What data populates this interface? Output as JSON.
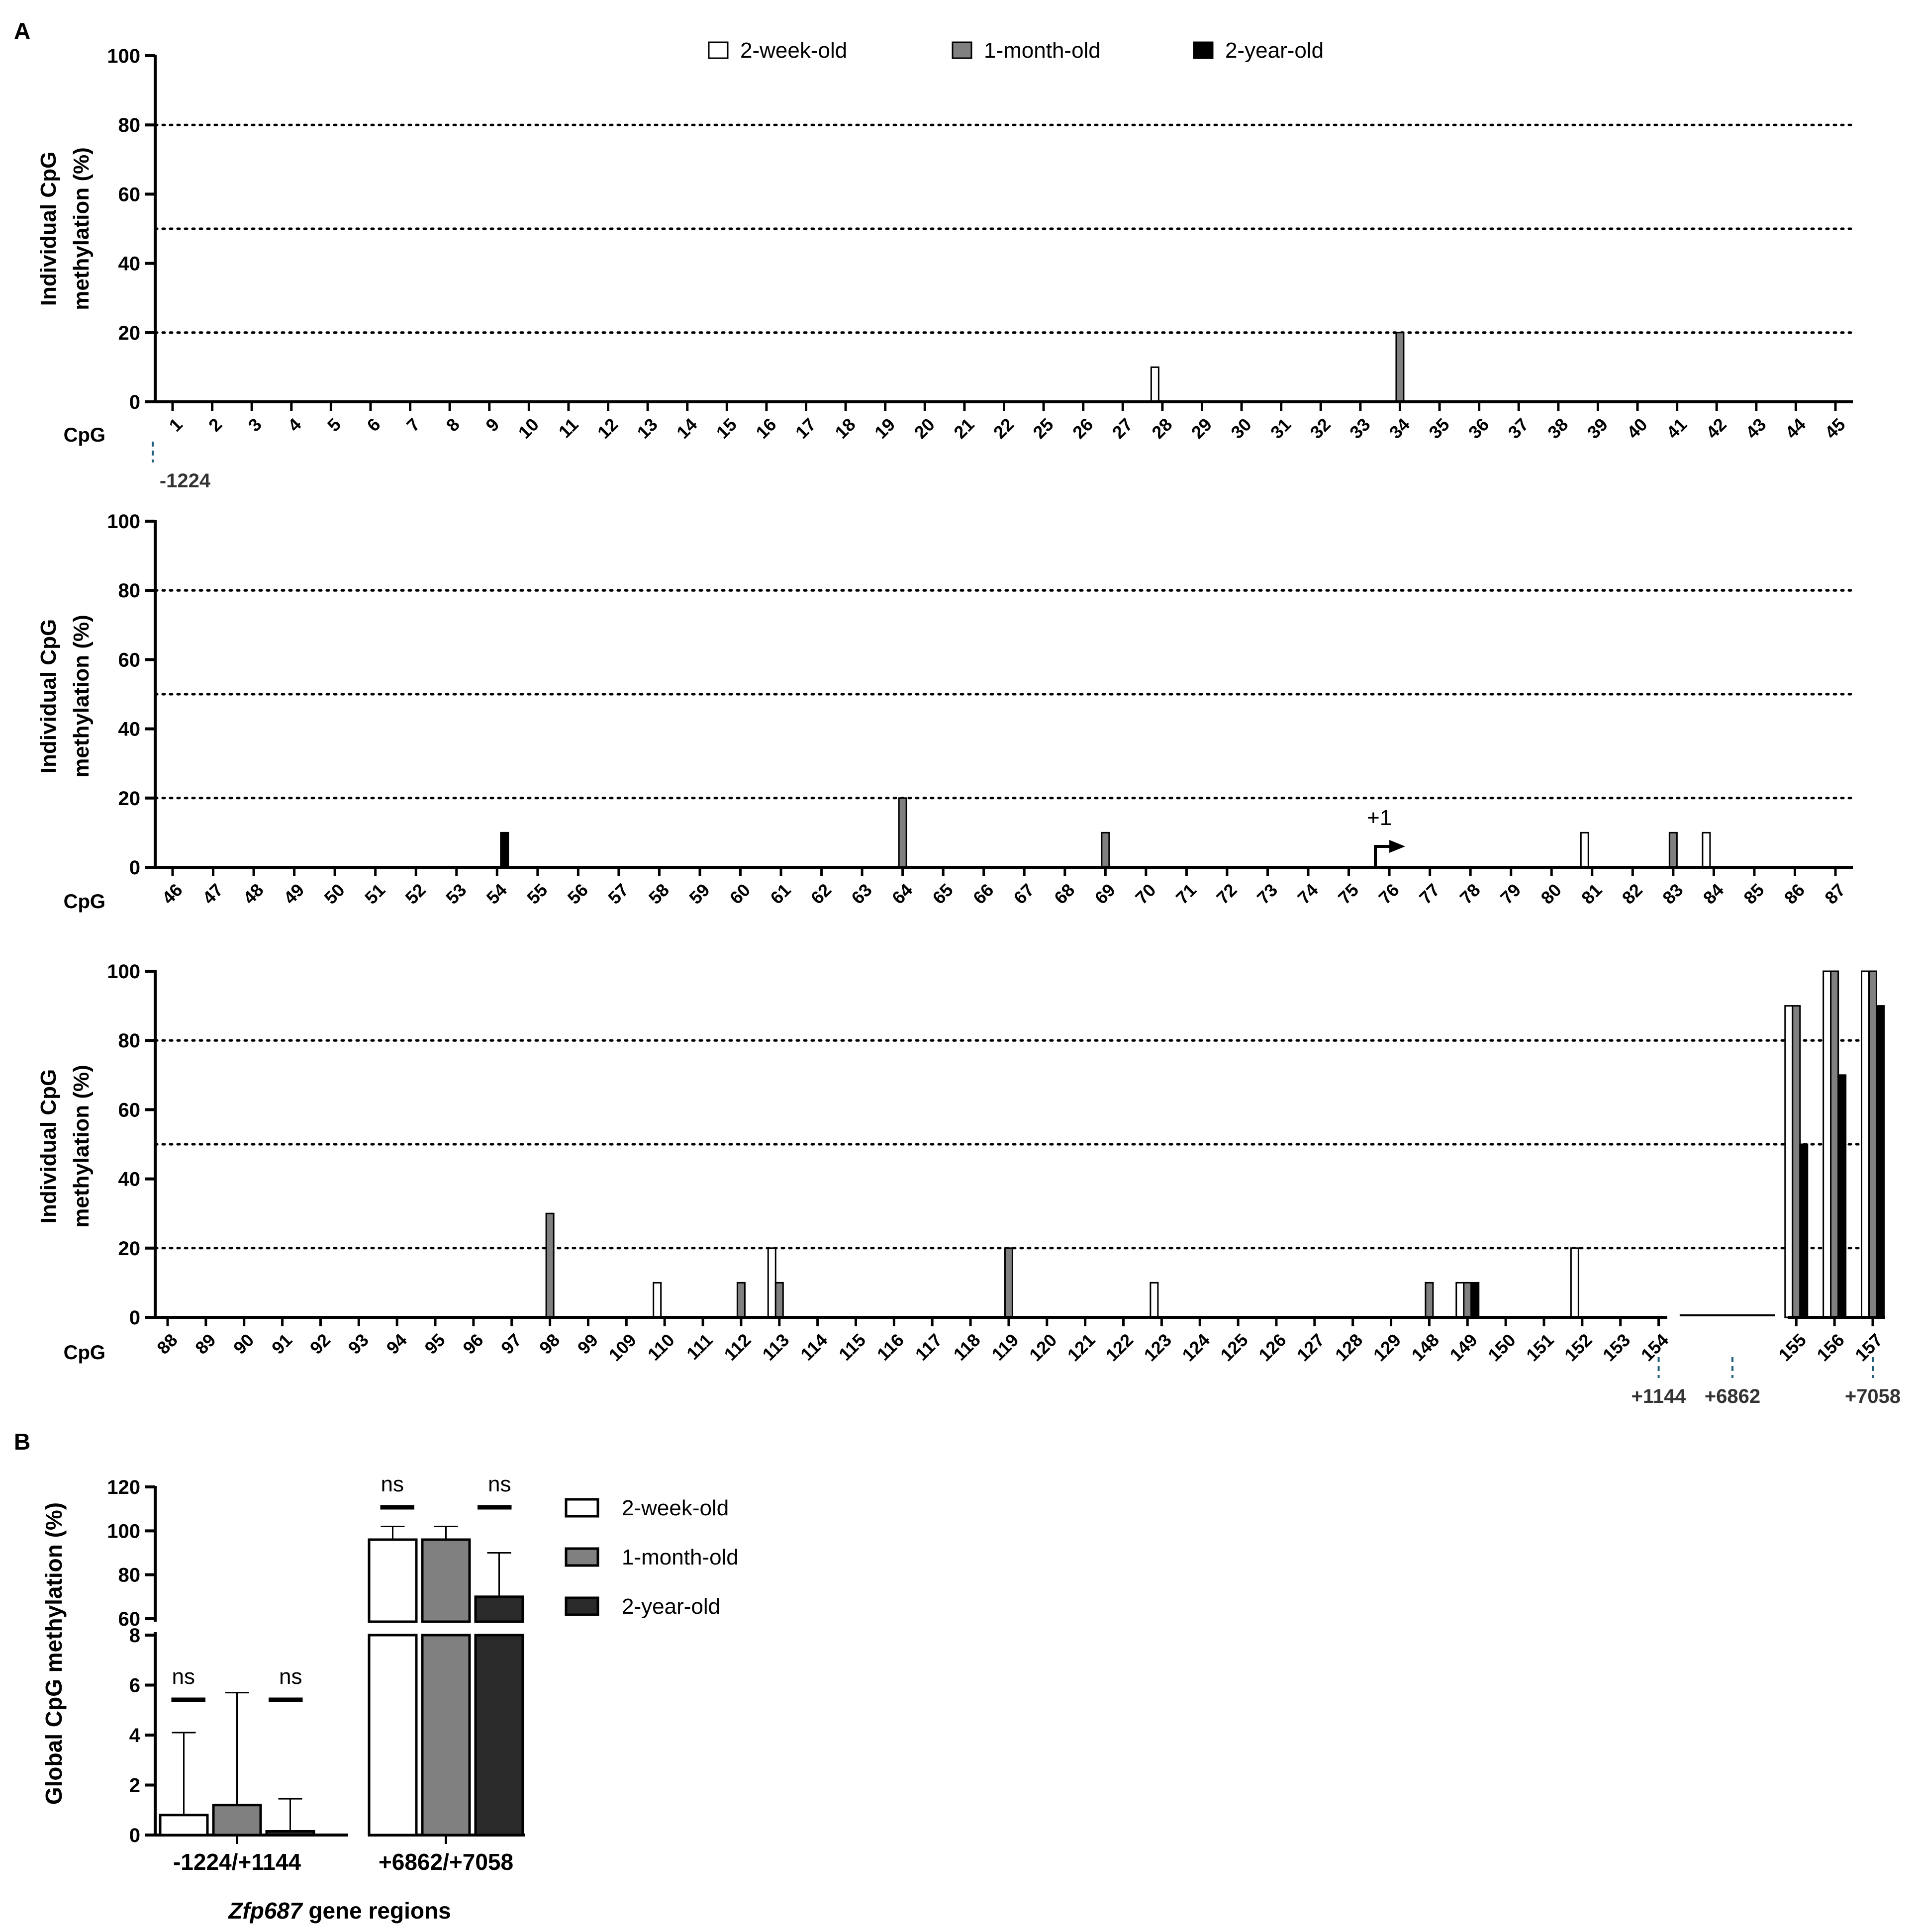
{
  "panel_labels": {
    "a": "A",
    "b": "B"
  },
  "colors": {
    "two_week": "#ffffff",
    "one_month": "#808080",
    "two_year": "#000000",
    "two_year_b": "#2a2a2a",
    "edge": "#000000",
    "guide": "#1f5f7a"
  },
  "chart_data": [
    {
      "type": "bar",
      "panel": "A-top",
      "ylabel_line1": "Individual CpG",
      "ylabel_line2": "methylation (%)",
      "x_title": "CpG",
      "ylim": [
        0,
        100
      ],
      "yticks": [
        "0",
        "20",
        "40",
        "60",
        "80",
        "100"
      ],
      "ref_lines": [
        20,
        50,
        80
      ],
      "categories": [
        "1",
        "2",
        "3",
        "4",
        "5",
        "6",
        "7",
        "8",
        "9",
        "10",
        "11",
        "12",
        "13",
        "14",
        "15",
        "16",
        "17",
        "18",
        "19",
        "20",
        "21",
        "22",
        "25",
        "26",
        "27",
        "28",
        "29",
        "30",
        "31",
        "32",
        "33",
        "34",
        "35",
        "36",
        "37",
        "38",
        "39",
        "40",
        "41",
        "42",
        "43",
        "44",
        "45"
      ],
      "series": [
        {
          "name": "2-week-old",
          "values": [
            0,
            0,
            0,
            0,
            0,
            0,
            0,
            0,
            0,
            0,
            0,
            0,
            0,
            0,
            0,
            0,
            0,
            0,
            0,
            0,
            0,
            0,
            0,
            0,
            0,
            10,
            0,
            0,
            0,
            0,
            0,
            0,
            0,
            0,
            0,
            0,
            0,
            0,
            0,
            0,
            0,
            0,
            0
          ]
        },
        {
          "name": "1-month-old",
          "values": [
            0,
            0,
            0,
            0,
            0,
            0,
            0,
            0,
            0,
            0,
            0,
            0,
            0,
            0,
            0,
            0,
            0,
            0,
            0,
            0,
            0,
            0,
            0,
            0,
            0,
            0,
            0,
            0,
            0,
            0,
            0,
            20,
            0,
            0,
            0,
            0,
            0,
            0,
            0,
            0,
            0,
            0,
            0
          ]
        },
        {
          "name": "2-year-old",
          "values": [
            0,
            0,
            0,
            0,
            0,
            0,
            0,
            0,
            0,
            0,
            0,
            0,
            0,
            0,
            0,
            0,
            0,
            0,
            0,
            0,
            0,
            0,
            0,
            0,
            0,
            0,
            0,
            0,
            0,
            0,
            0,
            0,
            0,
            0,
            0,
            0,
            0,
            0,
            0,
            0,
            0,
            0,
            0
          ]
        }
      ],
      "position_markers": [
        {
          "label": "-1224",
          "at": "1"
        }
      ]
    },
    {
      "type": "bar",
      "panel": "A-middle",
      "ylabel_line1": "Individual CpG",
      "ylabel_line2": "methylation (%)",
      "x_title": "CpG",
      "ylim": [
        0,
        100
      ],
      "yticks": [
        "0",
        "20",
        "40",
        "60",
        "80",
        "100"
      ],
      "ref_lines": [
        20,
        50,
        80
      ],
      "categories": [
        "46",
        "47",
        "48",
        "49",
        "50",
        "51",
        "52",
        "53",
        "54",
        "55",
        "56",
        "57",
        "58",
        "59",
        "60",
        "61",
        "62",
        "63",
        "64",
        "65",
        "66",
        "67",
        "68",
        "69",
        "70",
        "71",
        "72",
        "73",
        "74",
        "75",
        "76",
        "77",
        "78",
        "79",
        "80",
        "81",
        "82",
        "83",
        "84",
        "85",
        "86",
        "87"
      ],
      "series": [
        {
          "name": "2-week-old",
          "values": [
            0,
            0,
            0,
            0,
            0,
            0,
            0,
            0,
            0,
            0,
            0,
            0,
            0,
            0,
            0,
            0,
            0,
            0,
            0,
            0,
            0,
            0,
            0,
            0,
            0,
            0,
            0,
            0,
            0,
            0,
            0,
            0,
            0,
            0,
            0,
            10,
            0,
            0,
            10,
            0,
            0,
            0
          ]
        },
        {
          "name": "1-month-old",
          "values": [
            0,
            0,
            0,
            0,
            0,
            0,
            0,
            0,
            0,
            0,
            0,
            0,
            0,
            0,
            0,
            0,
            0,
            0,
            20,
            0,
            0,
            0,
            0,
            10,
            0,
            0,
            0,
            0,
            0,
            0,
            0,
            0,
            0,
            0,
            0,
            0,
            0,
            10,
            0,
            0,
            0,
            0
          ]
        },
        {
          "name": "2-year-old",
          "values": [
            0,
            0,
            0,
            0,
            0,
            0,
            0,
            0,
            10,
            0,
            0,
            0,
            0,
            0,
            0,
            0,
            0,
            0,
            0,
            0,
            0,
            0,
            0,
            0,
            0,
            0,
            0,
            0,
            0,
            0,
            0,
            0,
            0,
            0,
            0,
            0,
            0,
            0,
            0,
            0,
            0,
            0
          ]
        }
      ],
      "tss_label": "+1",
      "tss_at": "76"
    },
    {
      "type": "bar",
      "panel": "A-bottom",
      "ylabel_line1": "Individual CpG",
      "ylabel_line2": "methylation (%)",
      "x_title": "CpG",
      "ylim": [
        0,
        100
      ],
      "yticks": [
        "0",
        "20",
        "40",
        "60",
        "80",
        "100"
      ],
      "ref_lines": [
        20,
        50,
        80
      ],
      "categories": [
        "88",
        "89",
        "90",
        "91",
        "92",
        "93",
        "94",
        "95",
        "96",
        "97",
        "98",
        "99",
        "109",
        "110",
        "111",
        "112",
        "113",
        "114",
        "115",
        "116",
        "117",
        "118",
        "119",
        "120",
        "121",
        "122",
        "123",
        "124",
        "125",
        "126",
        "127",
        "128",
        "129",
        "148",
        "149",
        "150",
        "151",
        "152",
        "153",
        "154",
        "155",
        "156",
        "157"
      ],
      "series": [
        {
          "name": "2-week-old",
          "values": [
            0,
            0,
            0,
            0,
            0,
            0,
            0,
            0,
            0,
            0,
            0,
            0,
            0,
            10,
            0,
            0,
            20,
            0,
            0,
            0,
            0,
            0,
            0,
            0,
            0,
            0,
            10,
            0,
            0,
            0,
            0,
            0,
            0,
            0,
            10,
            0,
            0,
            20,
            0,
            0,
            90,
            100,
            100
          ]
        },
        {
          "name": "1-month-old",
          "values": [
            0,
            0,
            0,
            0,
            0,
            0,
            0,
            0,
            0,
            0,
            30,
            0,
            0,
            0,
            0,
            10,
            10,
            0,
            0,
            0,
            0,
            0,
            20,
            0,
            0,
            0,
            0,
            0,
            0,
            0,
            0,
            0,
            0,
            10,
            10,
            0,
            0,
            0,
            0,
            0,
            90,
            100,
            100
          ]
        },
        {
          "name": "2-year-old",
          "values": [
            0,
            0,
            0,
            0,
            0,
            0,
            0,
            0,
            0,
            0,
            0,
            0,
            0,
            0,
            0,
            0,
            0,
            0,
            0,
            0,
            0,
            0,
            0,
            0,
            0,
            0,
            0,
            0,
            0,
            0,
            0,
            0,
            0,
            0,
            10,
            0,
            0,
            0,
            0,
            0,
            50,
            70,
            90
          ]
        }
      ],
      "position_markers": [
        {
          "label": "+1144",
          "at": "154"
        },
        {
          "label": "+6862",
          "at": "gap"
        },
        {
          "label": "+7058",
          "at": "157"
        }
      ]
    },
    {
      "type": "bar",
      "panel": "B",
      "ylabel": "Global CpG methylation (%)",
      "xlabel_italic": "Zfp687",
      "xlabel_rest": " gene regions",
      "categories": [
        "-1224/+1144",
        "+6862/+7058"
      ],
      "upper_segment": {
        "ylim": [
          60,
          120
        ],
        "yticks": [
          "60",
          "80",
          "100",
          "120"
        ]
      },
      "lower_segment": {
        "ylim": [
          0,
          8
        ],
        "yticks": [
          "0",
          "2",
          "4",
          "6",
          "8"
        ]
      },
      "series": [
        {
          "name": "2-week-old",
          "values": [
            0.8,
            96
          ],
          "error": [
            3.3,
            6
          ]
        },
        {
          "name": "1-month-old",
          "values": [
            1.2,
            96
          ],
          "error": [
            4.5,
            6
          ]
        },
        {
          "name": "2-year-old",
          "values": [
            0.15,
            70
          ],
          "error": [
            1.3,
            20
          ]
        }
      ],
      "significance": [
        "ns",
        "ns",
        "ns",
        "ns"
      ]
    }
  ],
  "legend_a": [
    "2-week-old",
    "1-month-old",
    "2-year-old"
  ],
  "legend_b": [
    "2-week-old",
    "1-month-old",
    "2-year-old"
  ]
}
